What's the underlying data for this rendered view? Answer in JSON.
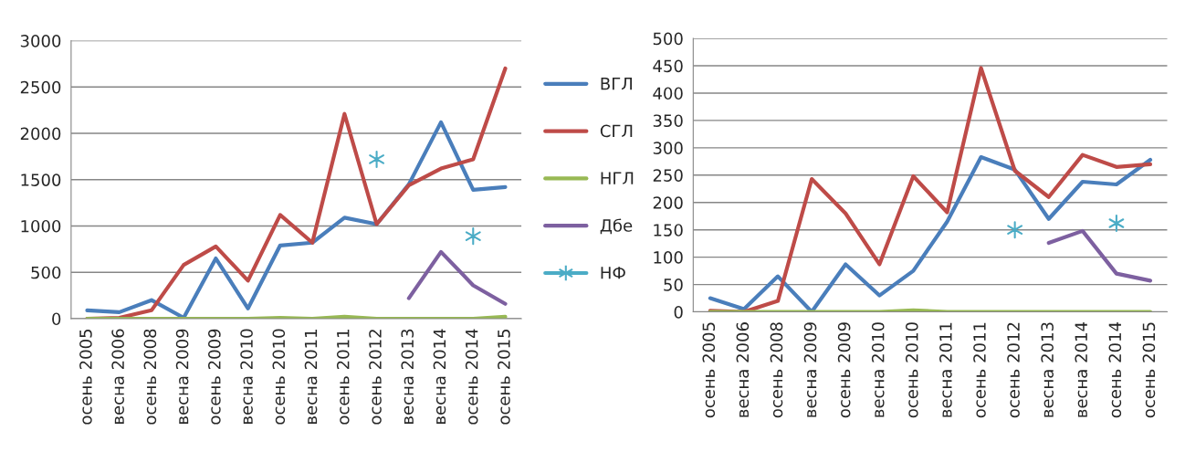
{
  "chart_data": [
    {
      "type": "line",
      "categories": [
        "осень 2005",
        "весна 2006",
        "осень 2008",
        "весна 2009",
        "осень 2009",
        "весна 2010",
        "осень 2010",
        "весна 2011",
        "осень 2011",
        "осень 2012",
        "весна 2013",
        "весна 2014",
        "осень 2014",
        "осень 2015"
      ],
      "series": [
        {
          "name": "ВГЛ",
          "color": "#4a7ebb",
          "values": [
            90,
            70,
            200,
            10,
            650,
            110,
            790,
            820,
            1090,
            1020,
            1450,
            2120,
            1390,
            1420
          ]
        },
        {
          "name": "СГЛ",
          "color": "#be4b48",
          "values": [
            0,
            10,
            90,
            580,
            780,
            410,
            1120,
            820,
            2210,
            1020,
            1440,
            1620,
            1720,
            2700
          ]
        },
        {
          "name": "НГЛ",
          "color": "#98b954",
          "values": [
            0,
            0,
            0,
            0,
            0,
            0,
            10,
            0,
            20,
            0,
            0,
            0,
            0,
            20
          ]
        },
        {
          "name": "Дбе",
          "color": "#7d60a0",
          "values": [
            null,
            null,
            null,
            null,
            null,
            null,
            null,
            null,
            null,
            null,
            220,
            720,
            360,
            160
          ]
        },
        {
          "name": "НФ",
          "color": "#4bacc6",
          "type": "scatter",
          "marker": "cross",
          "values": [
            null,
            null,
            null,
            null,
            null,
            null,
            null,
            null,
            null,
            1720,
            null,
            null,
            890,
            null
          ]
        }
      ],
      "ylim": [
        0,
        3000
      ],
      "yticks": [
        0,
        500,
        1000,
        1500,
        2000,
        2500,
        3000
      ],
      "grid": "y",
      "legend": "right"
    },
    {
      "type": "line",
      "categories": [
        "осень 2005",
        "весна 2006",
        "осень 2008",
        "весна 2009",
        "осень 2009",
        "весна 2010",
        "осень 2010",
        "весна 2011",
        "осень 2011",
        "осень 2012",
        "весна 2013",
        "весна 2014",
        "осень 2014",
        "осень 2015"
      ],
      "series": [
        {
          "color": "#4a7ebb",
          "values": [
            25,
            5,
            65,
            0,
            87,
            30,
            75,
            165,
            283,
            260,
            170,
            238,
            233,
            278
          ]
        },
        {
          "color": "#be4b48",
          "values": [
            2,
            0,
            20,
            243,
            180,
            87,
            248,
            182,
            446,
            258,
            210,
            287,
            265,
            270
          ]
        },
        {
          "color": "#98b954",
          "values": [
            0,
            0,
            0,
            0,
            0,
            0,
            3,
            0,
            0,
            0,
            0,
            0,
            0,
            0
          ]
        },
        {
          "color": "#7d60a0",
          "values": [
            null,
            null,
            null,
            null,
            null,
            null,
            null,
            null,
            null,
            null,
            126,
            148,
            70,
            57
          ]
        },
        {
          "color": "#4bacc6",
          "type": "scatter",
          "marker": "cross",
          "values": [
            null,
            null,
            null,
            null,
            null,
            null,
            null,
            null,
            null,
            150,
            null,
            null,
            162,
            null
          ]
        }
      ],
      "ylim": [
        0,
        500
      ],
      "yticks": [
        0,
        50,
        100,
        150,
        200,
        250,
        300,
        350,
        400,
        450,
        500
      ],
      "grid": "y"
    }
  ]
}
